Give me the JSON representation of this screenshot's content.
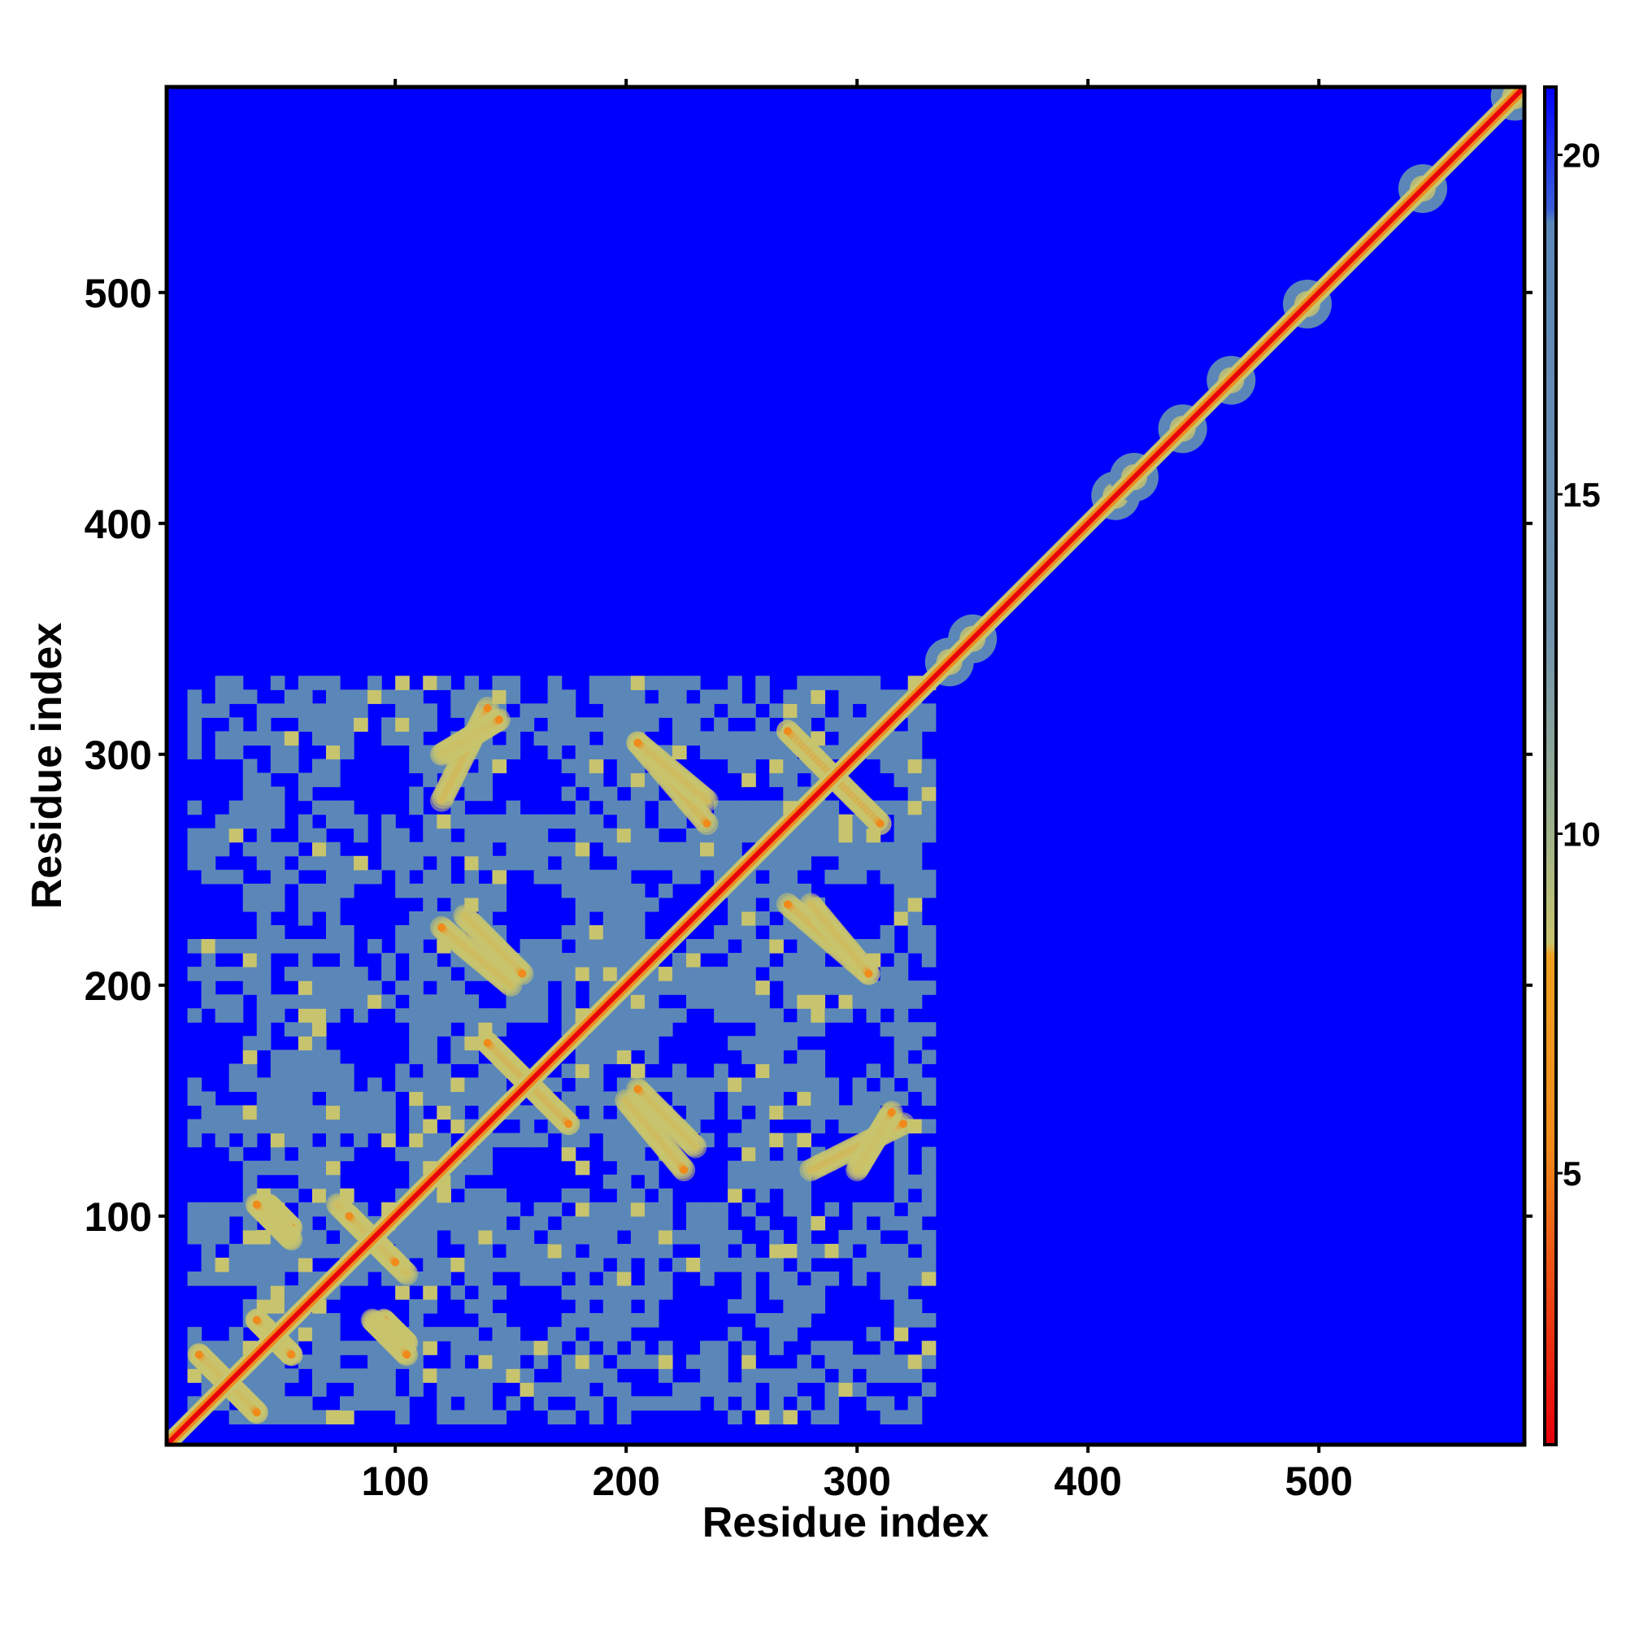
{
  "chart_data": {
    "type": "heatmap",
    "title": "",
    "xlabel": "Residue index",
    "ylabel": "Residue index",
    "xlim": [
      1,
      589
    ],
    "ylim": [
      1,
      589
    ],
    "x_ticks": [
      100,
      200,
      300,
      400,
      500
    ],
    "y_ticks": [
      100,
      200,
      300,
      400,
      500
    ],
    "colorbar": {
      "range": [
        1,
        21
      ],
      "ticks": [
        5,
        10,
        15,
        20
      ],
      "colors": {
        "min": "#e8000b",
        "low": "#f08a1a",
        "mid": "#c8c46e",
        "high": "#5b87b8",
        "max": "#0000ff"
      }
    },
    "background_color": "#0000ff",
    "structured_region": {
      "residue_start": 10,
      "residue_end": 330
    },
    "diagonal_blobs_centers": [
      340,
      350,
      412,
      420,
      441,
      462,
      495,
      545,
      585
    ],
    "contact_patterns": [
      {
        "type": "antiparallel",
        "i_start": 15,
        "i_end": 40,
        "j_start": 40,
        "j_end": 15
      },
      {
        "type": "antiparallel",
        "i_start": 40,
        "i_end": 55,
        "j_start": 55,
        "j_end": 40
      },
      {
        "type": "antiparallel",
        "i_start": 45,
        "i_end": 55,
        "j_start": 105,
        "j_end": 95
      },
      {
        "type": "antiparallel",
        "i_start": 75,
        "i_end": 100,
        "j_start": 105,
        "j_end": 80
      },
      {
        "type": "antiparallel",
        "i_start": 90,
        "i_end": 105,
        "j_start": 55,
        "j_end": 40
      },
      {
        "type": "antiparallel",
        "i_start": 140,
        "i_end": 175,
        "j_start": 175,
        "j_end": 140
      },
      {
        "type": "antiparallel",
        "i_start": 200,
        "i_end": 225,
        "j_start": 150,
        "j_end": 120
      },
      {
        "type": "antiparallel",
        "i_start": 130,
        "i_end": 155,
        "j_start": 230,
        "j_end": 205
      },
      {
        "type": "antiparallel",
        "i_start": 270,
        "i_end": 310,
        "j_start": 310,
        "j_end": 270
      },
      {
        "type": "antiparallel",
        "i_start": 205,
        "i_end": 235,
        "j_start": 305,
        "j_end": 270
      },
      {
        "type": "antiparallel",
        "i_start": 280,
        "i_end": 305,
        "j_start": 235,
        "j_end": 205
      },
      {
        "type": "parallel",
        "i_start": 120,
        "i_end": 140,
        "j_start": 280,
        "j_end": 320
      },
      {
        "type": "parallel",
        "i_start": 300,
        "i_end": 315,
        "j_start": 120,
        "j_end": 145
      }
    ]
  }
}
